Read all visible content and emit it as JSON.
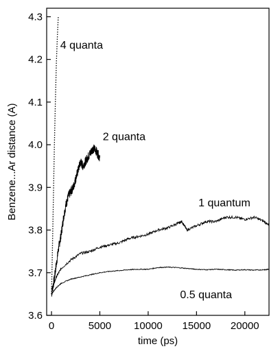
{
  "chart_data": {
    "type": "line",
    "title": "",
    "xlabel": "time (ps)",
    "ylabel": "Benzene...Ar distance (A)",
    "xlim": [
      -500,
      22500
    ],
    "ylim": [
      3.6,
      4.32
    ],
    "xticks": [
      0,
      5000,
      10000,
      15000,
      20000
    ],
    "xtick_labels": [
      "0",
      "5000",
      "10000",
      "15000",
      "20000"
    ],
    "yticks": [
      3.6,
      3.7,
      3.8,
      3.9,
      4.0,
      4.1,
      4.2,
      4.3
    ],
    "ytick_labels": [
      "3.6",
      "3.7",
      "3.8",
      "3.9",
      "4.0",
      "4.1",
      "4.2",
      "4.3"
    ],
    "grid": false,
    "legend": "none",
    "series": [
      {
        "name": "4 quanta",
        "style": "dotted",
        "color": "#000000",
        "x": [
          0,
          100,
          200,
          300,
          400,
          500,
          600,
          700
        ],
        "y": [
          3.65,
          3.76,
          3.88,
          4.0,
          4.1,
          4.19,
          4.25,
          4.3
        ]
      },
      {
        "name": "2 quanta",
        "style": "noisy",
        "color": "#000000",
        "x": [
          0,
          250,
          500,
          750,
          1000,
          1250,
          1500,
          1750,
          2000,
          2250,
          2500,
          2750,
          3000,
          3250,
          3500,
          3750,
          4000,
          4250,
          4500,
          4750,
          5000
        ],
        "y": [
          3.65,
          3.68,
          3.72,
          3.76,
          3.79,
          3.83,
          3.86,
          3.88,
          3.89,
          3.9,
          3.92,
          3.94,
          3.96,
          3.95,
          3.96,
          3.97,
          3.98,
          3.99,
          3.99,
          3.98,
          3.97
        ]
      },
      {
        "name": "1 quantum",
        "style": "noisy",
        "color": "#000000",
        "x": [
          0,
          500,
          1000,
          2000,
          3000,
          4000,
          5000,
          6000,
          7000,
          8000,
          9000,
          10000,
          11000,
          12000,
          13000,
          13500,
          14000,
          15000,
          16000,
          17000,
          18000,
          19000,
          20000,
          21000,
          22000,
          22500
        ],
        "y": [
          3.66,
          3.69,
          3.71,
          3.73,
          3.745,
          3.75,
          3.76,
          3.765,
          3.77,
          3.78,
          3.785,
          3.79,
          3.8,
          3.805,
          3.815,
          3.82,
          3.8,
          3.81,
          3.82,
          3.82,
          3.83,
          3.83,
          3.825,
          3.83,
          3.82,
          3.81
        ]
      },
      {
        "name": "0.5 quanta",
        "style": "noisy",
        "color": "#000000",
        "x": [
          0,
          500,
          1000,
          2000,
          3000,
          4000,
          5000,
          6000,
          7000,
          8000,
          9000,
          10000,
          11000,
          12000,
          13000,
          14000,
          15000,
          16000,
          17000,
          18000,
          19000,
          20000,
          21000,
          22000,
          22500
        ],
        "y": [
          3.65,
          3.665,
          3.675,
          3.685,
          3.69,
          3.695,
          3.7,
          3.703,
          3.705,
          3.707,
          3.708,
          3.708,
          3.712,
          3.713,
          3.712,
          3.71,
          3.708,
          3.707,
          3.708,
          3.707,
          3.706,
          3.707,
          3.706,
          3.707,
          3.708
        ]
      }
    ],
    "annotations": [
      {
        "text": "4 quanta",
        "x": 900,
        "y": 4.235
      },
      {
        "text": "2 quanta",
        "x": 5300,
        "y": 4.02
      },
      {
        "text": "1 quantum",
        "x": 15200,
        "y": 3.865
      },
      {
        "text": "0.5 quanta",
        "x": 13300,
        "y": 3.65
      }
    ]
  }
}
